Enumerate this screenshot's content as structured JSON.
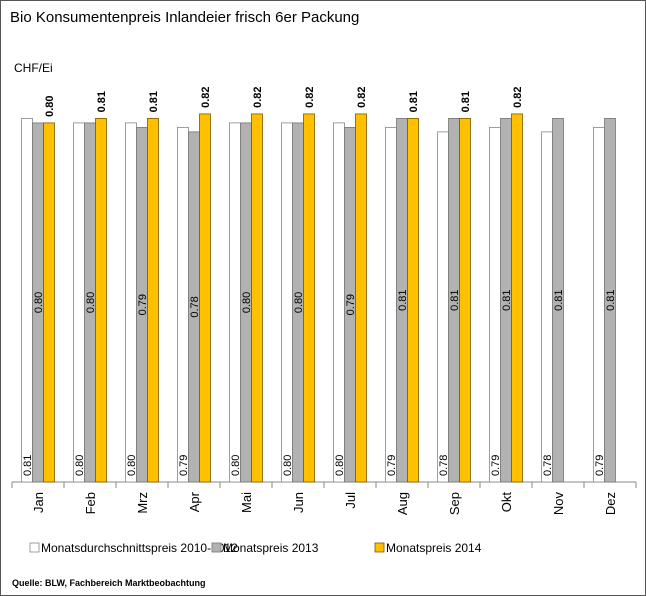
{
  "chart_data": {
    "type": "bar",
    "title": "Bio Konsumentenpreis Inlandeier frisch 6er Packung",
    "y_label": "CHF/Ei",
    "source": "Quelle: BLW, Fachbereich Marktbeobachtung",
    "categories": [
      "Jan",
      "Feb",
      "Mrz",
      "Apr",
      "Mai",
      "Jun",
      "Jul",
      "Aug",
      "Sep",
      "Okt",
      "Nov",
      "Dez"
    ],
    "ylim": [
      0,
      0.9
    ],
    "legend": "bottom",
    "series": [
      {
        "name": "Monatsdurchschnittspreis 2010-2012",
        "color": "#ffffff",
        "values": [
          0.81,
          0.8,
          0.8,
          0.79,
          0.8,
          0.8,
          0.8,
          0.79,
          0.78,
          0.79,
          0.78,
          0.79
        ],
        "value_labels": [
          "0.81",
          "0.80",
          "0.80",
          "0.79",
          "0.80",
          "0.80",
          "0.80",
          "0.79",
          "0.78",
          "0.79",
          "0.78",
          "0.79"
        ]
      },
      {
        "name": "Monatspreis 2013",
        "color": "#b2b2b2",
        "values": [
          0.8,
          0.8,
          0.79,
          0.78,
          0.8,
          0.8,
          0.79,
          0.81,
          0.81,
          0.81,
          0.81,
          0.81
        ],
        "value_labels": [
          "0.80",
          "0.80",
          "0.79",
          "0.78",
          "0.80",
          "0.80",
          "0.79",
          "0.81",
          "0.81",
          "0.81",
          "0.81",
          "0.81"
        ]
      },
      {
        "name": "Monatspreis 2014",
        "color": "#ffc000",
        "values": [
          0.8,
          0.81,
          0.81,
          0.82,
          0.82,
          0.82,
          0.82,
          0.81,
          0.81,
          0.82,
          null,
          null
        ],
        "value_labels": [
          "0.80",
          "0.81",
          "0.81",
          "0.82",
          "0.82",
          "0.82",
          "0.82",
          "0.81",
          "0.81",
          "0.82",
          null,
          null
        ]
      }
    ]
  }
}
